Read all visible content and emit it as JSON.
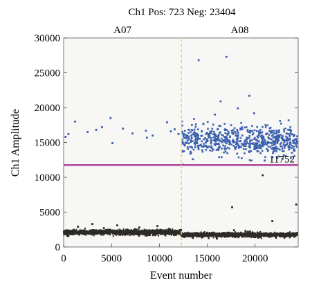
{
  "chart_data": {
    "type": "scatter",
    "title": "Ch1 Pos: 723 Neg: 23404",
    "xlabel": "Event number",
    "ylabel": "Ch1 Amplitude",
    "xlim": [
      0,
      24500
    ],
    "ylim": [
      0,
      30000
    ],
    "x_ticks": [
      0,
      5000,
      10000,
      15000,
      20000
    ],
    "y_ticks": [
      0,
      5000,
      10000,
      15000,
      20000,
      25000,
      30000
    ],
    "grid": false,
    "wells": [
      {
        "label": "A07",
        "x_center": 6150
      },
      {
        "label": "A08",
        "x_center": 18400
      }
    ],
    "well_divider_x": 12300,
    "threshold": {
      "value": 11752,
      "label": "11752"
    },
    "colors": {
      "positive": "#3a5fae",
      "negative": "#2e2a26",
      "threshold": "#b0449a",
      "divider": "#f2dc3a",
      "plot_background": "#f7f7f5"
    },
    "series": [
      {
        "category": "positive",
        "description_counts": 723,
        "sparse_points": [
          [
            200,
            15800
          ],
          [
            500,
            16200
          ],
          [
            1200,
            18000
          ],
          [
            2500,
            16500
          ],
          [
            3400,
            16800
          ],
          [
            4000,
            17200
          ],
          [
            4900,
            18500
          ],
          [
            5100,
            14900
          ],
          [
            6200,
            17000
          ],
          [
            7200,
            16300
          ],
          [
            8600,
            16700
          ],
          [
            8700,
            15700
          ],
          [
            9300,
            16000
          ],
          [
            10800,
            17900
          ],
          [
            11200,
            16600
          ],
          [
            11600,
            16900
          ],
          [
            12000,
            16200
          ],
          [
            14100,
            26800
          ],
          [
            15800,
            19000
          ],
          [
            16400,
            20900
          ],
          [
            17000,
            27300
          ],
          [
            18200,
            19900
          ],
          [
            19400,
            21700
          ],
          [
            19900,
            19200
          ],
          [
            13500,
            12600
          ],
          [
            21000,
            12400
          ],
          [
            22300,
            12800
          ]
        ],
        "cluster": {
          "x_range": [
            12350,
            24400
          ],
          "y_mean": 15300,
          "y_spread": 1000,
          "count": 640
        }
      },
      {
        "category": "negative",
        "description_counts": 23404,
        "sparse_points": [
          [
            1500,
            2900
          ],
          [
            3000,
            3300
          ],
          [
            4200,
            2700
          ],
          [
            5600,
            3100
          ],
          [
            7900,
            2800
          ],
          [
            9800,
            3000
          ],
          [
            11000,
            2600
          ],
          [
            13500,
            1300
          ],
          [
            16000,
            1200
          ],
          [
            17600,
            5700
          ],
          [
            17800,
            2400
          ],
          [
            19000,
            2300
          ],
          [
            20800,
            10300
          ],
          [
            21800,
            3700
          ],
          [
            24300,
            6100
          ]
        ],
        "clusters": [
          {
            "x_range": [
              0,
              12300
            ],
            "y_mean": 2100,
            "y_spread": 180,
            "count": 1400
          },
          {
            "x_range": [
              12300,
              24400
            ],
            "y_mean": 1750,
            "y_spread": 150,
            "count": 1400
          }
        ]
      }
    ]
  }
}
